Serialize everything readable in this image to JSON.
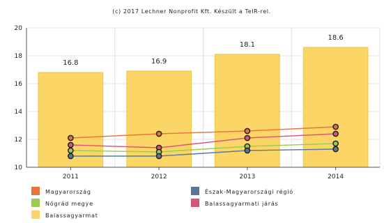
{
  "credit": "(c) 2017 Lechner Nonprofit Kft. Készült a TeIR-rel.",
  "chart_data": {
    "type": "bar",
    "categories": [
      "2011",
      "2012",
      "2013",
      "2014"
    ],
    "ylim": [
      10,
      20
    ],
    "yticks": [
      10,
      12,
      14,
      16,
      18,
      20
    ],
    "grid": true,
    "bars": {
      "name": "Balassagyarmat",
      "color": "#fbd666",
      "edge_color": "#f2c94c",
      "values": [
        16.8,
        16.9,
        18.1,
        18.6
      ],
      "labels": [
        "16.8",
        "16.9",
        "18.1",
        "18.6"
      ]
    },
    "series": [
      {
        "name": "Magyarország",
        "color": "#e8743b",
        "values": [
          12.1,
          12.4,
          12.6,
          12.9
        ]
      },
      {
        "name": "Balassagyarmati járás",
        "color": "#d9547a",
        "values": [
          11.6,
          11.4,
          12.1,
          12.4
        ]
      },
      {
        "name": "Nógrád megye",
        "color": "#9acd4f",
        "values": [
          11.2,
          11.1,
          11.5,
          11.7
        ]
      },
      {
        "name": "Észak-Magyarországi régió",
        "color": "#5b7896",
        "values": [
          10.8,
          10.8,
          11.2,
          11.3
        ]
      }
    ],
    "legend_position": "bottom",
    "legend": [
      {
        "label": "Magyarország",
        "color": "#e8743b"
      },
      {
        "label": "Észak-Magyarországi régió",
        "color": "#5b7896"
      },
      {
        "label": "Nógrád megye",
        "color": "#9acd4f"
      },
      {
        "label": "Balassagyarmati járás",
        "color": "#d9547a"
      },
      {
        "label": "Balassagyarmat",
        "color": "#fbd666"
      }
    ]
  }
}
